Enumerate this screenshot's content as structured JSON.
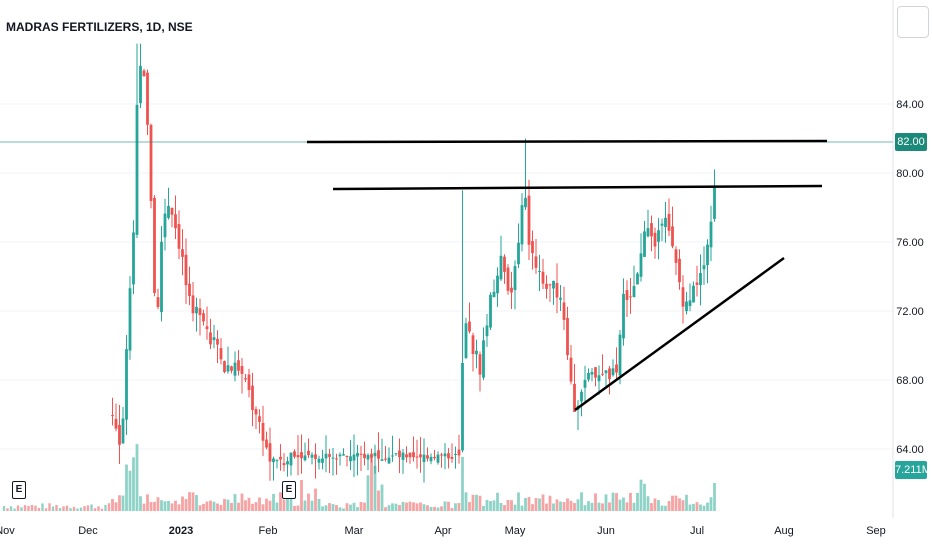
{
  "header": {
    "title": "MADRAS FERTILIZERS, 1D, NSE"
  },
  "price_tags": {
    "last_price": "82.00",
    "volume": "7.211M",
    "last_price_color": "#1b8a7a",
    "volume_color": "#26a69a"
  },
  "event_markers": {
    "label": "E"
  },
  "colors": {
    "up": "#26a69a",
    "down": "#ef5350",
    "up_volume": "#8fd3c8",
    "down_volume": "#f6a3a3",
    "trendline": "#000000",
    "price_line": "#1b8a7a",
    "grid": "#f0f3fa",
    "axis_text": "#131722"
  },
  "chart_data": {
    "type": "candlestick",
    "title": "MADRAS FERTILIZERS, 1D, NSE",
    "ylim": [
      62,
      87
    ],
    "y_ticks": [
      "84.00",
      "80.00",
      "76.00",
      "72.00",
      "68.00",
      "64.00"
    ],
    "y_tick_values": [
      84,
      80,
      76,
      72,
      68,
      64
    ],
    "x_ticks": [
      "Nov",
      "Dec",
      "2023",
      "Feb",
      "Mar",
      "Apr",
      "May",
      "Jun",
      "Jul",
      "Aug",
      "Sep"
    ],
    "last_price": 82.0,
    "last_volume_millions": 7.211,
    "horizontal_levels": [
      82.0,
      79.3
    ],
    "rising_trendline": {
      "from": 66.2,
      "to": 75.2
    },
    "candles": [
      [
        78.5,
        81.2,
        77.8,
        80.4
      ],
      [
        80.4,
        86.0,
        79.5,
        85.2
      ],
      [
        85.2,
        87.5,
        83.5,
        84.0
      ],
      [
        84.0,
        85.0,
        80.0,
        81.0
      ],
      [
        81.0,
        82.0,
        76.5,
        77.0
      ],
      [
        77.0,
        78.0,
        74.0,
        74.8
      ],
      [
        74.8,
        75.5,
        68.5,
        69.5
      ],
      [
        69.5,
        72.5,
        69.0,
        71.8
      ],
      [
        71.8,
        75.5,
        71.0,
        75.0
      ],
      [
        75.0,
        77.5,
        74.5,
        77.0
      ],
      [
        77.0,
        79.5,
        76.0,
        78.8
      ],
      [
        78.8,
        79.2,
        76.5,
        77.2
      ],
      [
        77.2,
        78.5,
        75.5,
        76.0
      ],
      [
        76.0,
        77.0,
        73.5,
        74.0
      ],
      [
        74.0,
        75.5,
        72.5,
        73.0
      ],
      [
        73.0,
        74.0,
        71.0,
        71.6
      ],
      [
        71.6,
        72.5,
        69.5,
        70.0
      ],
      [
        70.0,
        71.5,
        69.0,
        70.8
      ],
      [
        70.8,
        71.2,
        68.5,
        69.0
      ],
      [
        69.0,
        70.5,
        67.0,
        67.5
      ],
      [
        67.5,
        69.5,
        67.0,
        68.8
      ],
      [
        68.8,
        69.0,
        66.5,
        67.0
      ],
      [
        67.0,
        67.8,
        65.0,
        65.5
      ],
      [
        65.5,
        66.5,
        64.0,
        64.6
      ],
      [
        64.6,
        65.5,
        63.0,
        63.5
      ],
      [
        63.5,
        64.5,
        62.5,
        64.0
      ]
    ],
    "volumes_millions": [
      1.2,
      0.8,
      0.6,
      0.7,
      1.5,
      0.6
    ]
  }
}
